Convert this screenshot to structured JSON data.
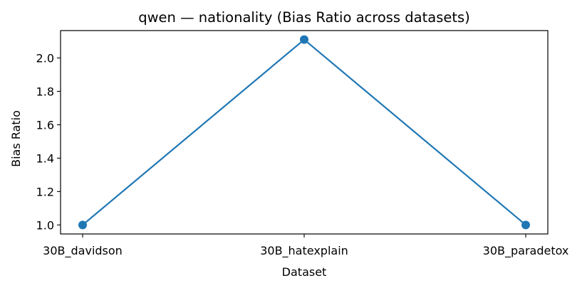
{
  "chart_data": {
    "type": "line",
    "title": "qwen — nationality (Bias Ratio across datasets)",
    "xlabel": "Dataset",
    "ylabel": "Bias Ratio",
    "categories": [
      "30B_davidson",
      "30B_hatexplain",
      "30B_paradetox"
    ],
    "series": [
      {
        "values": [
          1.0,
          2.11,
          1.0
        ],
        "color": "#1f77b4",
        "marker": "circle"
      }
    ],
    "ylim": [
      0.946,
      2.164
    ],
    "yticks": [
      "1.0",
      "1.2",
      "1.4",
      "1.6",
      "1.8",
      "2.0"
    ],
    "grid": false,
    "legend": "none"
  }
}
